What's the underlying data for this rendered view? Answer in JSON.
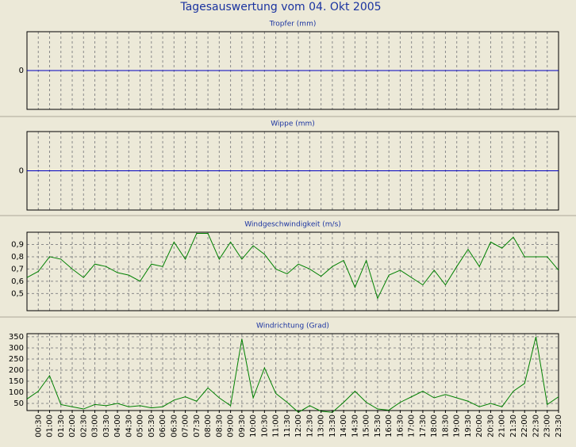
{
  "title": "Tagesauswertung vom 04. Okt 2005",
  "chart_data": [
    {
      "type": "line",
      "title": "Tropfer (mm)",
      "ylim": [
        -1,
        1
      ],
      "yticks": [
        0
      ],
      "grid": true,
      "series": [
        {
          "color": "#0000c0",
          "values": [
            0,
            0,
            0,
            0,
            0,
            0,
            0,
            0,
            0,
            0,
            0,
            0,
            0,
            0,
            0,
            0,
            0,
            0,
            0,
            0,
            0,
            0,
            0,
            0,
            0,
            0,
            0,
            0,
            0,
            0,
            0,
            0,
            0,
            0,
            0,
            0,
            0,
            0,
            0,
            0,
            0,
            0,
            0,
            0,
            0,
            0,
            0,
            0
          ]
        }
      ]
    },
    {
      "type": "line",
      "title": "Wippe (mm)",
      "ylim": [
        -1,
        1
      ],
      "yticks": [
        0
      ],
      "grid": true,
      "series": [
        {
          "color": "#0000c0",
          "values": [
            0,
            0,
            0,
            0,
            0,
            0,
            0,
            0,
            0,
            0,
            0,
            0,
            0,
            0,
            0,
            0,
            0,
            0,
            0,
            0,
            0,
            0,
            0,
            0,
            0,
            0,
            0,
            0,
            0,
            0,
            0,
            0,
            0,
            0,
            0,
            0,
            0,
            0,
            0,
            0,
            0,
            0,
            0,
            0,
            0,
            0,
            0,
            0
          ]
        }
      ]
    },
    {
      "type": "line",
      "title": "Windgeschwindigkeit (m/s)",
      "ylim": [
        0.36,
        1.0
      ],
      "yticks": [
        {
          "value": 0.5,
          "label": "0,5"
        },
        {
          "value": 0.6,
          "label": "0,6"
        },
        {
          "value": 0.7,
          "label": "0,7"
        },
        {
          "value": 0.8,
          "label": "0,8"
        },
        {
          "value": 0.9,
          "label": "0,9"
        }
      ],
      "grid": true,
      "series": [
        {
          "color": "#008000",
          "values": [
            0.63,
            0.68,
            0.8,
            0.78,
            0.7,
            0.63,
            0.74,
            0.72,
            0.67,
            0.65,
            0.6,
            0.74,
            0.72,
            0.92,
            0.78,
            0.99,
            0.99,
            0.78,
            0.92,
            0.78,
            0.89,
            0.82,
            0.7,
            0.66,
            0.74,
            0.7,
            0.64,
            0.72,
            0.77,
            0.55,
            0.77,
            0.46,
            0.65,
            0.69,
            0.63,
            0.57,
            0.69,
            0.57,
            0.72,
            0.86,
            0.72,
            0.92,
            0.87,
            0.96,
            0.8,
            0.8,
            0.8,
            0.69
          ]
        }
      ]
    },
    {
      "type": "line",
      "title": "Windrichtung (Grad)",
      "ylim": [
        18,
        364
      ],
      "yticks": [
        50,
        100,
        150,
        200,
        250,
        300,
        350
      ],
      "grid": true,
      "categories": [
        null,
        "00:30",
        "01:00",
        "01:30",
        "02:00",
        "02:30",
        "03:00",
        "03:30",
        "04:00",
        "04:30",
        "05:00",
        "05:30",
        "06:00",
        "06:30",
        "07:00",
        "07:30",
        "08:00",
        "08:30",
        "09:00",
        "09:30",
        "10:00",
        "10:30",
        "11:00",
        "11:30",
        "12:00",
        "12:30",
        "13:00",
        "13:30",
        "14:00",
        "14:30",
        "15:00",
        "15:30",
        "16:00",
        "16:30",
        "17:00",
        "17:30",
        "18:00",
        "18:30",
        "19:00",
        "19:30",
        "20:00",
        "20:30",
        "21:00",
        "21:30",
        "22:00",
        "22:30",
        "23:00",
        "23:30"
      ],
      "series": [
        {
          "color": "#008000",
          "values": [
            70,
            105,
            175,
            45,
            35,
            25,
            45,
            40,
            50,
            35,
            40,
            30,
            35,
            65,
            80,
            60,
            120,
            75,
            40,
            340,
            75,
            210,
            95,
            55,
            10,
            40,
            15,
            10,
            55,
            105,
            55,
            25,
            20,
            55,
            80,
            105,
            75,
            90,
            75,
            60,
            35,
            50,
            35,
            105,
            140,
            350,
            45,
            80
          ]
        }
      ]
    }
  ]
}
